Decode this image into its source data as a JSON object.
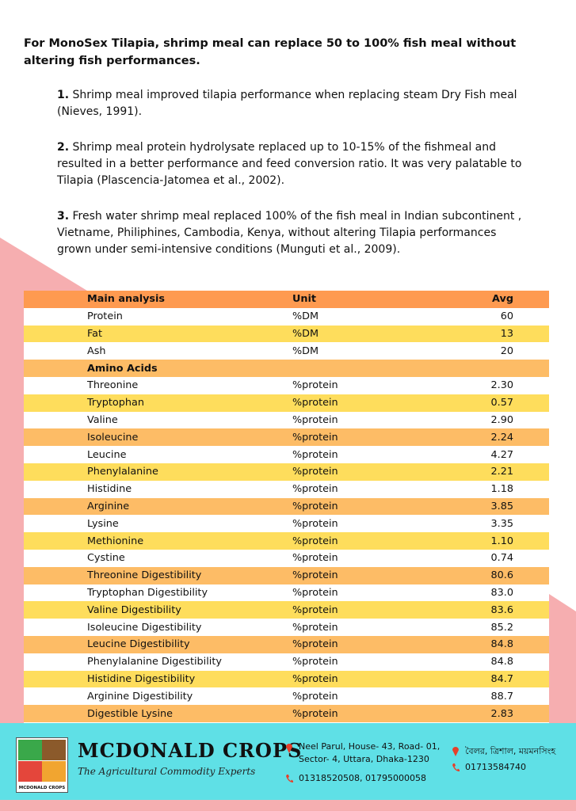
{
  "intro": "For MonoSex  Tilapia, shrimp meal can replace 50 to 100% fish meal without altering fish performances.",
  "points": [
    {
      "num": "1.",
      "text": " Shrimp meal improved tilapia performance when replacing steam Dry Fish meal (Nieves, 1991)."
    },
    {
      "num": "2.",
      "text": " Shrimp meal protein hydrolysate replaced up to 10-15% of the fishmeal and resulted in a better performance and feed conversion ratio. It was very palatable to Tilapia (Plascencia-Jatomea et al., 2002)."
    },
    {
      "num": "3.",
      "text": " Fresh water shrimp meal replaced 100% of the fish meal in Indian subcontinent  , Vietname, Philiphines, Cambodia,  Kenya, without altering Tilapia performances grown under semi-intensive conditions (Munguti et al., 2009)."
    }
  ],
  "table": {
    "header": [
      "Main analysis",
      "Unit",
      "Avg"
    ],
    "rows": [
      [
        "Protein",
        "%DM",
        "60"
      ],
      [
        "Fat",
        "%DM",
        "13"
      ],
      [
        "Ash",
        "%DM",
        "20"
      ],
      [
        "Amino Acids",
        "",
        ""
      ],
      [
        "Threonine",
        "%protein",
        "2.30"
      ],
      [
        "Tryptophan",
        "%protein",
        "0.57"
      ],
      [
        "Valine",
        "%protein",
        "2.90"
      ],
      [
        "Isoleucine",
        "%protein",
        "2.24"
      ],
      [
        "Leucine",
        "%protein",
        "4.27"
      ],
      [
        "Phenylalanine",
        "%protein",
        "2.21"
      ],
      [
        "Histidine",
        "%protein",
        "1.18"
      ],
      [
        "Arginine",
        "%protein",
        "3.85"
      ],
      [
        "Lysine",
        "%protein",
        "3.35"
      ],
      [
        "Methionine",
        "%protein",
        "1.10"
      ],
      [
        "Cystine",
        "%protein",
        "0.74"
      ],
      [
        "Threonine Digestibility",
        "%protein",
        "80.6"
      ],
      [
        "Tryptophan Digestibility",
        "%protein",
        "83.0"
      ],
      [
        "Valine Digestibility",
        "%protein",
        "83.6"
      ],
      [
        "Isoleucine Digestibility",
        "%protein",
        "85.2"
      ],
      [
        "Leucine Digestibility",
        "%protein",
        "84.8"
      ],
      [
        "Phenylalanine Digestibility",
        "%protein",
        "84.8"
      ],
      [
        "Histidine Digestibility",
        "%protein",
        "84.7"
      ],
      [
        "Arginine Digestibility",
        "%protein",
        "88.7"
      ],
      [
        "Digestible Lysine",
        "%protein",
        "2.83"
      ]
    ]
  },
  "footer": {
    "logo_text": "MCDONALD CROPS",
    "brand": "MCDONALD CROPS",
    "tagline": "The Agricultural Commodity Experts",
    "address": "Neel Parul, House- 43, Road- 01, Sector- 4, Uttara, Dhaka-1230",
    "phone": "01318520508, 01795000058",
    "address2": "বৈলর, ত্রিশাল, ময়মনসিংহ",
    "phone2": "01713584740"
  }
}
